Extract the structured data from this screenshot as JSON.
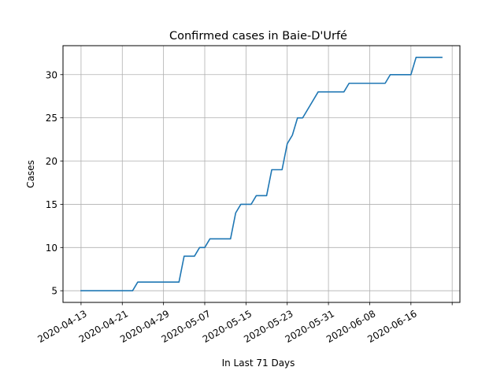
{
  "chart_data": {
    "type": "line",
    "title": "Confirmed cases in Baie-D'Urfé",
    "xlabel": "In Last 71 Days",
    "ylabel": "Cases",
    "grid": true,
    "x_tick_labels": [
      "2020-04-13",
      "2020-04-21",
      "2020-04-29",
      "2020-05-07",
      "2020-05-15",
      "2020-05-23",
      "2020-05-31",
      "2020-06-08",
      "2020-06-16"
    ],
    "y_ticks": [
      5,
      10,
      15,
      20,
      25,
      30
    ],
    "ylim": [
      3.65,
      33.35
    ],
    "series": [
      {
        "color": "#1f77b4",
        "points": [
          [
            "2020-04-13",
            5
          ],
          [
            "2020-04-23",
            5
          ],
          [
            "2020-04-24",
            6
          ],
          [
            "2020-05-02",
            6
          ],
          [
            "2020-05-03",
            9
          ],
          [
            "2020-05-05",
            9
          ],
          [
            "2020-05-06",
            10
          ],
          [
            "2020-05-07",
            10
          ],
          [
            "2020-05-08",
            11
          ],
          [
            "2020-05-12",
            11
          ],
          [
            "2020-05-13",
            14
          ],
          [
            "2020-05-14",
            15
          ],
          [
            "2020-05-16",
            15
          ],
          [
            "2020-05-17",
            16
          ],
          [
            "2020-05-19",
            16
          ],
          [
            "2020-05-20",
            19
          ],
          [
            "2020-05-22",
            19
          ],
          [
            "2020-05-23",
            22
          ],
          [
            "2020-05-24",
            23
          ],
          [
            "2020-05-25",
            25
          ],
          [
            "2020-05-26",
            25
          ],
          [
            "2020-05-29",
            28
          ],
          [
            "2020-06-03",
            28
          ],
          [
            "2020-06-04",
            29
          ],
          [
            "2020-06-11",
            29
          ],
          [
            "2020-06-12",
            30
          ],
          [
            "2020-06-16",
            30
          ],
          [
            "2020-06-17",
            32
          ],
          [
            "2020-06-22",
            32
          ]
        ]
      }
    ]
  }
}
